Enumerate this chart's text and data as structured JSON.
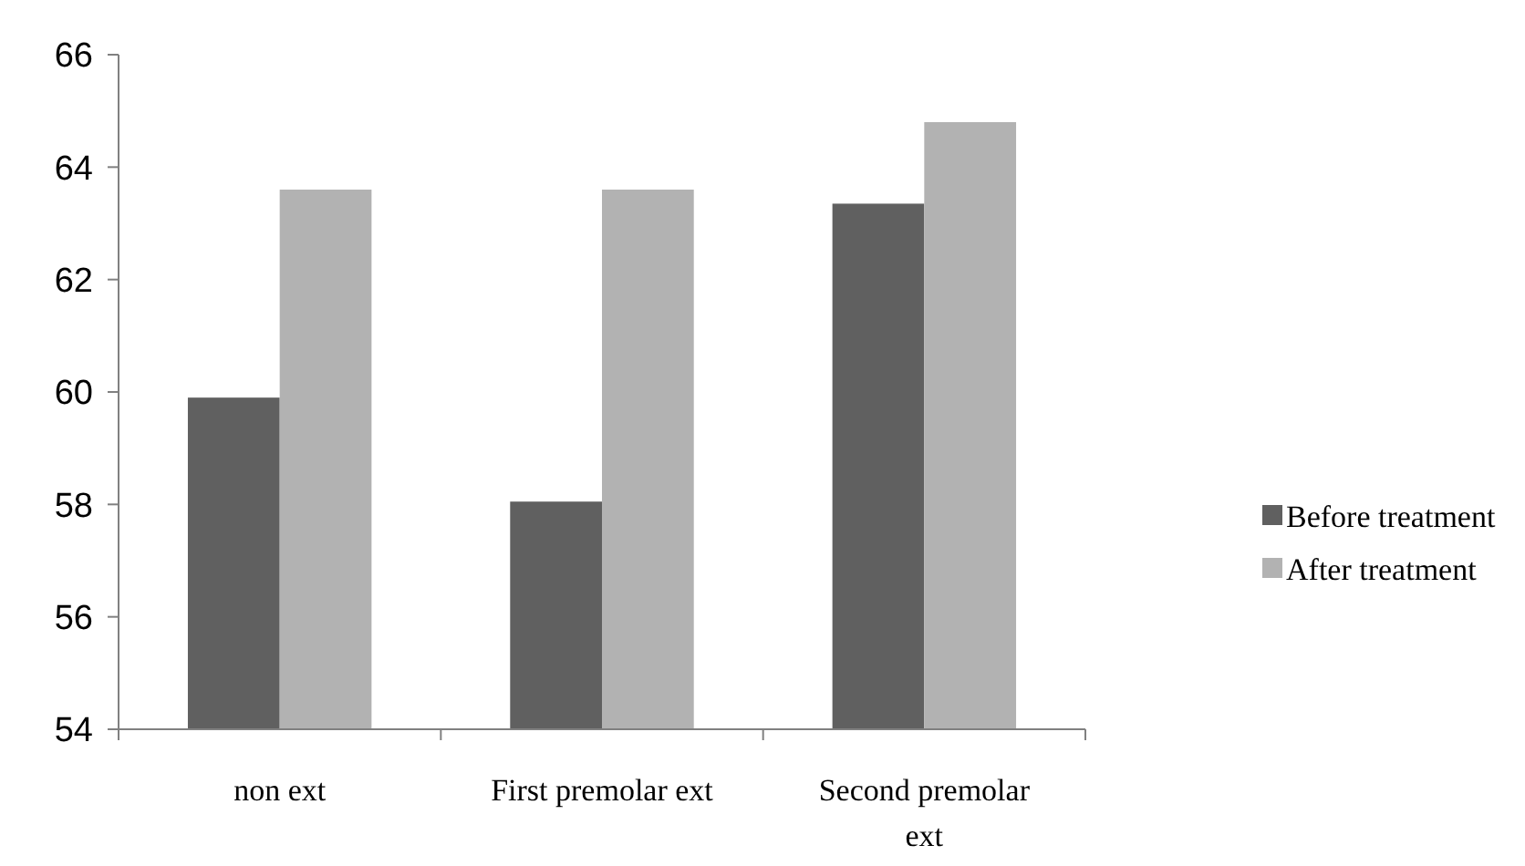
{
  "chart_data": {
    "type": "bar",
    "categories": [
      "non ext",
      "First premolar ext",
      "Second premolar ext"
    ],
    "series": [
      {
        "name": "Before treatment",
        "color": "#606060",
        "values": [
          59.9,
          58.05,
          63.35
        ]
      },
      {
        "name": "After treatment",
        "color": "#b2b2b2",
        "values": [
          63.6,
          63.6,
          64.8
        ]
      }
    ],
    "ylim": [
      54,
      66
    ],
    "yticks": [
      54,
      56,
      58,
      60,
      62,
      64,
      66
    ],
    "grid": false,
    "legend": "right"
  }
}
